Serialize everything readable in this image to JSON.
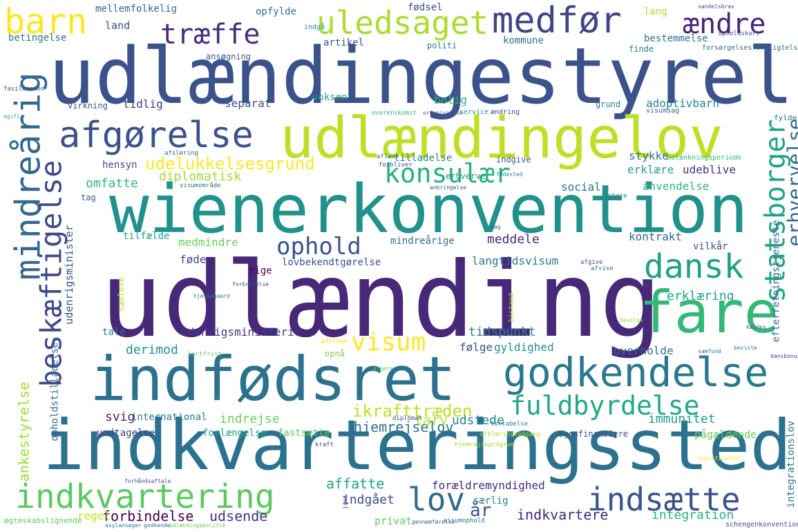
{
  "words": [
    {
      "text": "udlændingestyrelse",
      "color": "#3b528b"
    },
    {
      "text": "udlænding",
      "color": "#482878"
    },
    {
      "text": "indkvarteringssted",
      "color": "#2c728e"
    },
    {
      "text": "wienerkonvention",
      "color": "#21918c"
    },
    {
      "text": "udlændingelov",
      "color": "#bddf26"
    },
    {
      "text": "indfødsret",
      "color": "#2c728e"
    },
    {
      "text": "fare",
      "color": "#35b779"
    },
    {
      "text": "godkendelse",
      "color": "#2a788e"
    },
    {
      "text": "indkvartering",
      "color": "#5ec962"
    },
    {
      "text": "afgørelse",
      "color": "#3b528b"
    },
    {
      "text": "medfør",
      "color": "#414487"
    },
    {
      "text": "uledsaget",
      "color": "#addc30"
    },
    {
      "text": "mindreårig",
      "color": "#31688e"
    },
    {
      "text": "beskæftigelse",
      "color": "#3e4a89"
    },
    {
      "text": "fuldbyrdelse",
      "color": "#22a884"
    },
    {
      "text": "statsborger",
      "color": "#20a486"
    },
    {
      "text": "indsætte",
      "color": "#3b528b"
    },
    {
      "text": "dansk",
      "color": "#1fa187"
    },
    {
      "text": "barn",
      "color": "#fde725"
    },
    {
      "text": "træffe",
      "color": "#472d7b"
    },
    {
      "text": "ændre",
      "color": "#482677"
    },
    {
      "text": "konsulær",
      "color": "#2ab07f"
    },
    {
      "text": "visum",
      "color": "#fde725"
    },
    {
      "text": "lov",
      "color": "#31688e"
    },
    {
      "text": "ophold",
      "color": "#3b528b"
    },
    {
      "text": "erhvervelse",
      "color": "#31688e"
    },
    {
      "text": "ankestyrelse",
      "color": "#a0da39"
    },
    {
      "text": "udenrigsminister",
      "color": "#3b528b"
    },
    {
      "text": "udenrigsministerie",
      "color": "#443a83"
    },
    {
      "text": "ikrafttræden",
      "color": "#bddf26"
    },
    {
      "text": "udelukkelsesgrund",
      "color": "#fde725"
    },
    {
      "text": "diplomatisk",
      "color": "#a0da39"
    },
    {
      "text": "omfatte",
      "color": "#35b779"
    },
    {
      "text": "indkvartere",
      "color": "#482878"
    },
    {
      "text": "forbindelse",
      "color": "#440154"
    },
    {
      "text": "udsende",
      "color": "#46337e"
    },
    {
      "text": "integration",
      "color": "#2ab07f"
    },
    {
      "text": "år",
      "color": "#3b528b"
    },
    {
      "text": "regel",
      "color": "#c8e020"
    },
    {
      "text": "privat",
      "color": "#5ec962"
    },
    {
      "text": "indgået",
      "color": "#3e4a89"
    },
    {
      "text": "affatte",
      "color": "#20a486"
    },
    {
      "text": "forældremyndighed",
      "color": "#472d7b"
    },
    {
      "text": "særlig",
      "color": "#26828e"
    },
    {
      "text": "hjemrejselov",
      "color": "#2c728e"
    },
    {
      "text": "tarv",
      "color": "#b5de2b"
    },
    {
      "text": "udstede",
      "color": "#26828e"
    },
    {
      "text": "immunitet",
      "color": "#1f9e89"
    },
    {
      "text": "indrejse",
      "color": "#6ece58"
    },
    {
      "text": "svig",
      "color": "#482878"
    },
    {
      "text": "international",
      "color": "#2a788e"
    },
    {
      "text": "undtagelse",
      "color": "#443a83"
    },
    {
      "text": "forlængelse",
      "color": "#22a884"
    },
    {
      "text": "fastsætte",
      "color": "#5ec962"
    },
    {
      "text": "egenfinansiere",
      "color": "#3b528b"
    },
    {
      "text": "pågældende",
      "color": "#6ece58"
    },
    {
      "text": "integrationslov",
      "color": "#2c728e"
    },
    {
      "text": "efterretningstjeneste",
      "color": "#31688e"
    },
    {
      "text": "opholdstilladelse",
      "color": "#31688e"
    },
    {
      "text": "samleve",
      "color": "#bddf26"
    },
    {
      "text": "derimod",
      "color": "#21918c"
    },
    {
      "text": "tidspunkt",
      "color": "#26828e"
    },
    {
      "text": "følge",
      "color": "#3b528b"
    },
    {
      "text": "gyldighed",
      "color": "#21918c"
    },
    {
      "text": "opnå",
      "color": "#7ad151"
    },
    {
      "text": "tale",
      "color": "#2a788e"
    },
    {
      "text": "overholde",
      "color": "#2c728e"
    },
    {
      "text": "erklæring",
      "color": "#1f9e89"
    },
    {
      "text": "føde",
      "color": "#3e4a89"
    },
    {
      "text": "rige",
      "color": "#440154"
    },
    {
      "text": "lovbekendtgørelse",
      "color": "#3b528b"
    },
    {
      "text": "langtidsvisum",
      "color": "#2a788e"
    },
    {
      "text": "medmindre",
      "color": "#6ece58"
    },
    {
      "text": "mindreårige",
      "color": "#2c728e"
    },
    {
      "text": "meddele",
      "color": "#482878"
    },
    {
      "text": "kontrakt",
      "color": "#31688e"
    },
    {
      "text": "vilkår",
      "color": "#3e4a89"
    },
    {
      "text": "tilfælde",
      "color": "#1f9e89"
    },
    {
      "text": "social",
      "color": "#2c728e"
    },
    {
      "text": "anvendelse",
      "color": "#35b779"
    },
    {
      "text": "udeblive",
      "color": "#472d7b"
    },
    {
      "text": "erklære",
      "color": "#20a486"
    },
    {
      "text": "stykke",
      "color": "#2c728e"
    },
    {
      "text": "indgive",
      "color": "#3b528b"
    },
    {
      "text": "tilladelse",
      "color": "#26828e"
    },
    {
      "text": "erhverve",
      "color": "#21918c"
    },
    {
      "text": "hensyn",
      "color": "#3e4a89"
    },
    {
      "text": "tag",
      "color": "#3b528b"
    },
    {
      "text": "separat",
      "color": "#3b528b"
    },
    {
      "text": "tidlig",
      "color": "#443a83"
    },
    {
      "text": "virkning",
      "color": "#3b528b"
    },
    {
      "text": "voksen",
      "color": "#1fa187"
    },
    {
      "text": "bolig",
      "color": "#2ab07f"
    },
    {
      "text": "grund",
      "color": "#26828e"
    },
    {
      "text": "adoptivbarn",
      "color": "#26828e"
    },
    {
      "text": "betingelse",
      "color": "#2c728e"
    },
    {
      "text": "land",
      "color": "#3e4a89"
    },
    {
      "text": "mellemfolkelig",
      "color": "#31688e"
    },
    {
      "text": "opfylde",
      "color": "#2c728e"
    },
    {
      "text": "fødsel",
      "color": "#3e4a89"
    },
    {
      "text": "artikel",
      "color": "#3b528b"
    },
    {
      "text": "kommune",
      "color": "#2c728e"
    },
    {
      "text": "finde",
      "color": "#26828e"
    },
    {
      "text": "lang",
      "color": "#addc30"
    },
    {
      "text": "bestemmelse",
      "color": "#2c728e"
    },
    {
      "text": "ansøgning",
      "color": "#3b528b"
    },
    {
      "text": "politi",
      "color": "#26828e"
    },
    {
      "text": "indgå",
      "color": "#21918c"
    },
    {
      "text": "forsørgelsesforpligtelse",
      "color": "#31688e"
    },
    {
      "text": "opholdskort",
      "color": "#3e4a89"
    },
    {
      "text": "fylde",
      "color": "#2c728e"
    },
    {
      "text": "schengenkonvention",
      "color": "#3b528b"
    },
    {
      "text": "ægteskabslignende",
      "color": "#5ec962"
    },
    {
      "text": "juni",
      "color": "#3e4a89"
    },
    {
      "text": "diplomat",
      "color": "#3b528b"
    },
    {
      "text": "fortabelse",
      "color": "#26828e"
    },
    {
      "text": "kraft",
      "color": "#3e4a89"
    },
    {
      "text": "betænkningsperiode",
      "color": "#35b779"
    },
    {
      "text": "visumsag",
      "color": "#31688e"
    },
    {
      "text": "service",
      "color": "#1f9e89"
    },
    {
      "text": "ændring",
      "color": "#3e4a89"
    },
    {
      "text": "overenskomst",
      "color": "#35b779"
    },
    {
      "text": "ophøre",
      "color": "#2c728e"
    },
    {
      "text": "bistand",
      "color": "#a0da39"
    },
    {
      "text": "afgive",
      "color": "#3b528b"
    },
    {
      "text": "aflæse",
      "color": "#2c728e"
    },
    {
      "text": "forbliver",
      "color": "#3b528b"
    },
    {
      "text": "afsløring",
      "color": "#31688e"
    },
    {
      "text": "påklage",
      "color": "#fde725"
    },
    {
      "text": "organisation",
      "color": "#3b528b"
    },
    {
      "text": "kortfrist",
      "color": "#5ec962"
    },
    {
      "text": "forhåndsaftale",
      "color": "#3e4a89"
    },
    {
      "text": "hjemrejseprogram",
      "color": "#a0da39"
    },
    {
      "text": "erklæringsadgang",
      "color": "#addc30"
    },
    {
      "text": "visumophold",
      "color": "#2c728e"
    },
    {
      "text": "gennemførelse",
      "color": "#3b528b"
    },
    {
      "text": "asylansøger",
      "color": "#2a788e"
    },
    {
      "text": "godkende",
      "color": "#31688e"
    },
    {
      "text": "udlændingepolitik",
      "color": "#6ece58"
    },
    {
      "text": "sandelsbras",
      "color": "#3e4a89"
    },
    {
      "text": "sag",
      "color": "#3b528b"
    },
    {
      "text": "visumområde",
      "color": "#2c728e"
    },
    {
      "text": "anbringelse",
      "color": "#3b528b"
    },
    {
      "text": "fødested",
      "color": "#26828e"
    },
    {
      "text": "kvalifikation",
      "color": "#fde725"
    },
    {
      "text": "fasilemeden",
      "color": "#3b528b"
    },
    {
      "text": "agifi",
      "color": "#35b779"
    },
    {
      "text": "forbrydelse",
      "color": "#3b528b"
    },
    {
      "text": "samfund",
      "color": "#2c728e"
    },
    {
      "text": "hjemsøgaard",
      "color": "#26828e"
    },
    {
      "text": "fvu",
      "color": "#3b528b"
    },
    {
      "text": "dansbonus",
      "color": "#3e4a89"
    },
    {
      "text": "afvise",
      "color": "#2c728e"
    },
    {
      "text": "bevilge",
      "color": "#a0da39"
    },
    {
      "text": "kaldes",
      "color": "#3b528b"
    },
    {
      "text": "afgøre",
      "color": "#5ec962"
    },
    {
      "text": "beviste",
      "color": "#26828e"
    }
  ]
}
